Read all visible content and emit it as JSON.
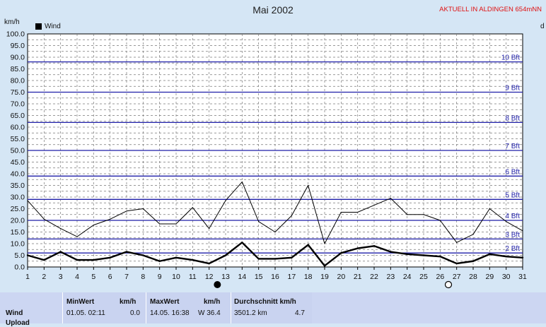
{
  "header": {
    "title": "Mai 2002",
    "station": "AKTUELL IN ALDINGEN 654mNN",
    "y_unit": "km/h",
    "y_unit_right": "d"
  },
  "legend": {
    "label": "Wind"
  },
  "colors": {
    "background": "#d5e6f5",
    "beaufort_line": "#1f1fa8",
    "series": "#000000",
    "station": "#e01010"
  },
  "chart_data": {
    "type": "line",
    "title": "Mai 2002",
    "ylabel": "km/h",
    "ylim": [
      0,
      100
    ],
    "x": [
      1,
      2,
      3,
      4,
      5,
      6,
      7,
      8,
      9,
      10,
      11,
      12,
      13,
      14,
      15,
      16,
      17,
      18,
      19,
      20,
      21,
      22,
      23,
      24,
      25,
      26,
      27,
      28,
      29,
      30,
      31
    ],
    "y_ticks": [
      "0.0",
      "2.5",
      "5.0",
      "7.5",
      "10.0",
      "12.5",
      "15.0",
      "17.5",
      "20.0",
      "22.5",
      "25.0",
      "27.5",
      "30.0",
      "32.5",
      "35.0",
      "37.5",
      "40.0",
      "42.5",
      "45.0",
      "47.5",
      "50.0",
      "52.5",
      "55.0",
      "57.5",
      "60.0",
      "62.5",
      "65.0",
      "67.5",
      "70.0",
      "72.5",
      "75.0",
      "77.5",
      "80.0",
      "82.5",
      "85.0",
      "87.5",
      "90.0",
      "92.5",
      "95.0",
      "97.5",
      "100.0"
    ],
    "series": [
      {
        "name": "",
        "style": "thin",
        "values": [
          28.5,
          20.5,
          16.5,
          13,
          18,
          20.5,
          24,
          25,
          18.5,
          18.5,
          25.5,
          16.5,
          28.5,
          36.5,
          19.5,
          15,
          22,
          35,
          10,
          23.5,
          23.5,
          26.5,
          29.5,
          22.5,
          22.5,
          20,
          10.5,
          14,
          25,
          19.5,
          15.5
        ]
      },
      {
        "name": "Wind",
        "style": "thick",
        "values": [
          5,
          3,
          6.5,
          3,
          3,
          4,
          6.5,
          5,
          2.5,
          4,
          3,
          1.5,
          5,
          10.5,
          3.5,
          3.5,
          4,
          9.5,
          0.5,
          6,
          8,
          9,
          6.5,
          5.5,
          5,
          4.5,
          1.5,
          2.5,
          5.5,
          4.5,
          4
        ]
      }
    ],
    "beaufort": [
      {
        "label": "2 Bft",
        "value": 6
      },
      {
        "label": "3 Bft",
        "value": 12
      },
      {
        "label": "4 Bft",
        "value": 20
      },
      {
        "label": "5 Bft",
        "value": 29
      },
      {
        "label": "6 Bft",
        "value": 39
      },
      {
        "label": "7 Bft",
        "value": 50
      },
      {
        "label": "8 Bft",
        "value": 62
      },
      {
        "label": "9 Bft",
        "value": 75
      },
      {
        "label": "10 Bft",
        "value": 88
      }
    ],
    "moon_phases": [
      {
        "day": 12.5,
        "phase": "new"
      },
      {
        "day": 26.5,
        "phase": "full"
      }
    ],
    "grid": true
  },
  "stats": {
    "row_label": "Wind",
    "row_label2": "Upload",
    "min": {
      "header": "MinWert",
      "unit": "km/h",
      "date": "01.05.  02:11",
      "value": "0.0"
    },
    "max": {
      "header": "MaxWert",
      "unit": "km/h",
      "date": "14.05.  16:38",
      "value": "W 36.4"
    },
    "avg": {
      "header": "Durchschnitt km/h",
      "date": "3501.2 km",
      "value": "4.7"
    }
  }
}
